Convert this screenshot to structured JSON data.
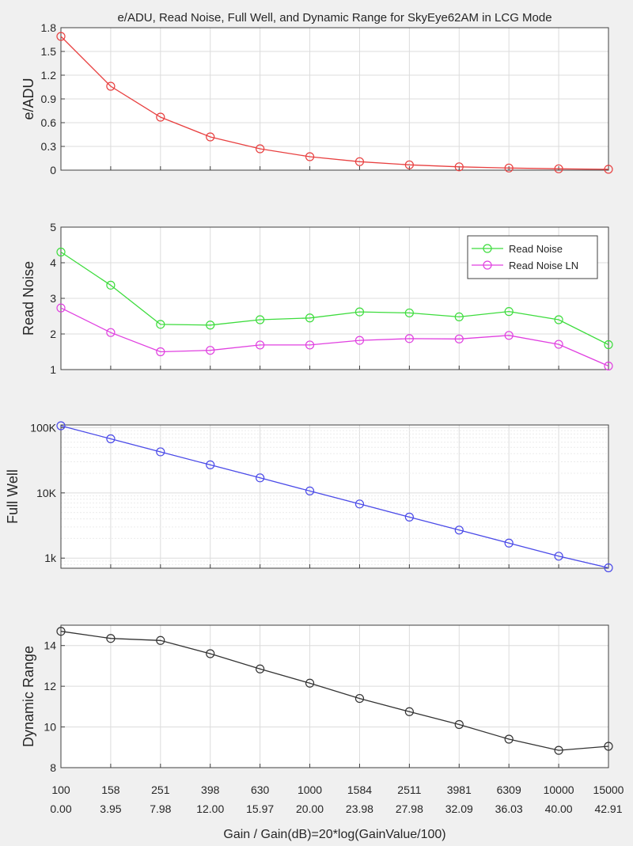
{
  "figure": {
    "title": "e/ADU, Read Noise, Full Well, and Dynamic Range for SkyEye62AM in LCG Mode",
    "xlabel": "Gain / Gain(dB)=20*log(GainValue/100)",
    "gain_labels": [
      "100",
      "158",
      "251",
      "398",
      "630",
      "1000",
      "1584",
      "2511",
      "3981",
      "6309",
      "10000",
      "15000"
    ],
    "gain_db_labels": [
      "0.00",
      "3.95",
      "7.98",
      "12.00",
      "15.97",
      "20.00",
      "23.98",
      "27.98",
      "32.09",
      "36.03",
      "40.00",
      "42.91"
    ]
  },
  "chart_data": [
    {
      "type": "line",
      "title": "e/ADU, Read Noise, Full Well, and Dynamic Range for SkyEye62AM in LCG Mode",
      "ylabel": "e/ADU",
      "ylim": [
        0,
        1.8
      ],
      "yticks": [
        0,
        0.3,
        0.6,
        0.9,
        1.2,
        1.5,
        1.8
      ],
      "ytick_labels": [
        "0",
        "0.3",
        "0.6",
        "0.9",
        "1.2",
        "1.5",
        "1.8"
      ],
      "grid": true,
      "series": [
        {
          "color": "#e84040",
          "values": [
            1.69,
            1.06,
            0.67,
            0.42,
            0.27,
            0.17,
            0.107,
            0.067,
            0.042,
            0.027,
            0.017,
            0.011
          ]
        }
      ]
    },
    {
      "type": "line",
      "ylabel": "Read Noise",
      "ylim": [
        1,
        5
      ],
      "yticks": [
        1,
        2,
        3,
        4,
        5
      ],
      "ytick_labels": [
        "1",
        "2",
        "3",
        "4",
        "5"
      ],
      "grid": true,
      "legend": "top-right",
      "series": [
        {
          "name": "Read Noise",
          "color": "#3ddc3d",
          "values": [
            4.3,
            3.37,
            2.27,
            2.25,
            2.4,
            2.45,
            2.62,
            2.59,
            2.48,
            2.63,
            2.4,
            1.7
          ]
        },
        {
          "name": "Read Noise LN",
          "color": "#e040e0",
          "values": [
            2.73,
            2.04,
            1.5,
            1.54,
            1.69,
            1.69,
            1.82,
            1.87,
            1.86,
            1.96,
            1.71,
            1.1
          ]
        }
      ]
    },
    {
      "type": "line",
      "ylabel": "Full Well",
      "yscale": "log",
      "ylim": [
        700,
        110000
      ],
      "yticks": [
        1000,
        10000,
        100000
      ],
      "ytick_labels": [
        "1k",
        "10K",
        "100K"
      ],
      "grid": true,
      "series": [
        {
          "color": "#4a4ae8",
          "values": [
            107000,
            67500,
            42600,
            26900,
            17000,
            10700,
            6760,
            4260,
            2690,
            1700,
            1070,
            710
          ]
        }
      ]
    },
    {
      "type": "line",
      "ylabel": "Dynamic Range",
      "ylim": [
        8,
        15
      ],
      "yticks": [
        8,
        10,
        12,
        14
      ],
      "ytick_labels": [
        "8",
        "10",
        "12",
        "14"
      ],
      "grid": true,
      "series": [
        {
          "color": "#333333",
          "values": [
            14.7,
            14.35,
            14.25,
            13.6,
            12.85,
            12.15,
            11.4,
            10.75,
            10.12,
            9.4,
            8.85,
            9.05
          ]
        }
      ]
    }
  ]
}
